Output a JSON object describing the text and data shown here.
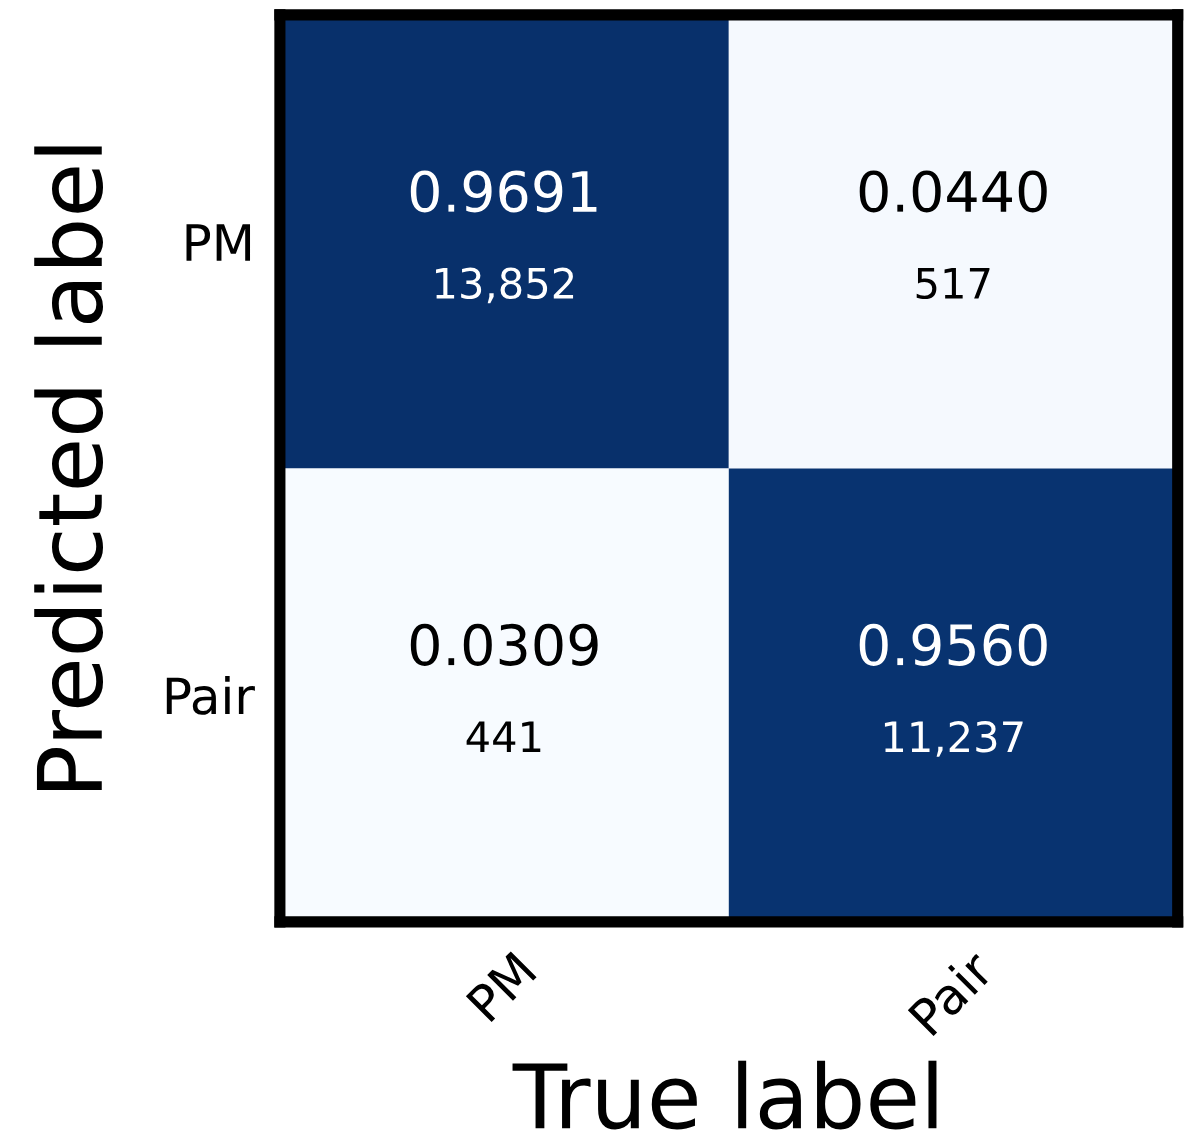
{
  "chart_data": {
    "type": "heatmap",
    "xlabel": "True label",
    "ylabel": "Predicted label",
    "categories": [
      "PM",
      "Pair"
    ],
    "y_categories": [
      "PM",
      "Pair"
    ],
    "cells": [
      [
        0.9691,
        0.044
      ],
      [
        0.0309,
        0.956
      ]
    ],
    "cell_labels": [
      [
        "0.9691",
        "0.0440"
      ],
      [
        "0.0309",
        "0.9560"
      ]
    ],
    "annotations": [
      "13,852",
      "517",
      "441",
      "11,237"
    ]
  }
}
